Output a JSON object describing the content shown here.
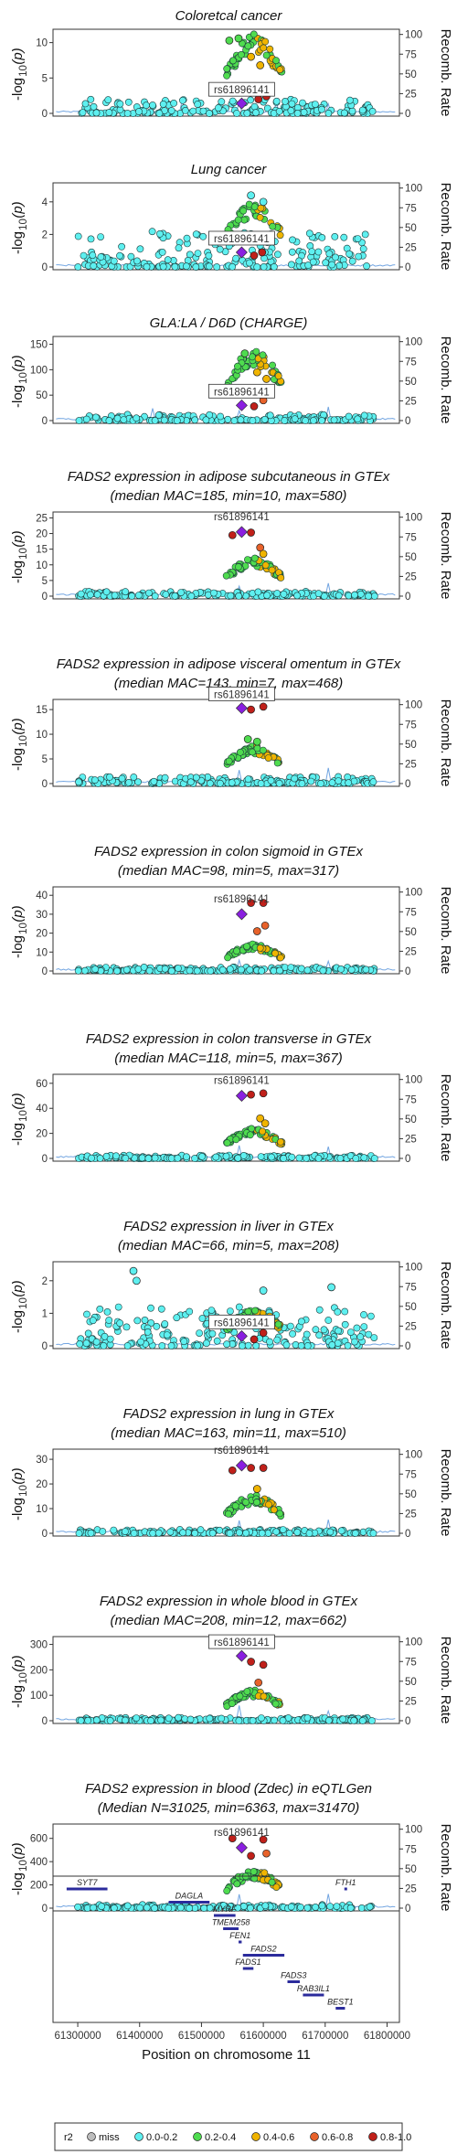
{
  "chart_data": [
    {
      "type": "scatter",
      "title": "Coloretcal cancer",
      "title2": "",
      "yticks": [
        0,
        5,
        10
      ],
      "ymax": 11.5,
      "y2ticks": [
        0,
        25,
        50,
        75,
        100
      ],
      "ylabel": "-log10(p)",
      "y2label": "Recomb. Rate",
      "lead_snp": "rs61896141",
      "lead_logp": 1.4,
      "lead_label_box": true,
      "peak": {
        "h": 10.2,
        "n": 55
      },
      "background": {
        "h": 2.0,
        "n": 170
      },
      "recomb_spikes": [
        61470000,
        61560000,
        61620000,
        61705000
      ],
      "notable_points": [
        {
          "x": 61545000,
          "y": 10.3,
          "r2": "0.2-0.4"
        },
        {
          "x": 61560000,
          "y": 10.6,
          "r2": "0.2-0.4"
        },
        {
          "x": 61580000,
          "y": 8.0,
          "r2": "0.4-0.6"
        },
        {
          "x": 61595000,
          "y": 6.8,
          "r2": "0.4-0.6"
        },
        {
          "x": 61592000,
          "y": 2.0,
          "r2": "0.8-1.0"
        },
        {
          "x": 61605000,
          "y": 2.4,
          "r2": "0.8-1.0"
        }
      ]
    },
    {
      "type": "scatter",
      "title": "Lung cancer",
      "title2": "",
      "yticks": [
        0,
        2,
        4
      ],
      "ymax": 5,
      "y2ticks": [
        0,
        25,
        50,
        75,
        100
      ],
      "ylabel": "-log10(p)",
      "y2label": "Recomb. Rate",
      "lead_snp": "rs61896141",
      "lead_logp": 0.9,
      "lead_label_box": true,
      "peak": {
        "h": 3.6,
        "n": 40
      },
      "background": {
        "h": 2.2,
        "n": 190
      },
      "recomb_spikes": [
        61560000,
        61705000
      ],
      "notable_points": [
        {
          "x": 61580000,
          "y": 4.4,
          "r2": "0.0-0.2"
        },
        {
          "x": 61600000,
          "y": 4.0,
          "r2": "0.0-0.2"
        },
        {
          "x": 61585000,
          "y": 0.7,
          "r2": "0.8-1.0"
        },
        {
          "x": 61598000,
          "y": 0.9,
          "r2": "0.8-1.0"
        }
      ]
    },
    {
      "type": "scatter",
      "title": "GLA:LA / D6D (CHARGE)",
      "title2": "",
      "yticks": [
        0,
        50,
        100,
        150
      ],
      "ymax": 160,
      "y2ticks": [
        0,
        25,
        50,
        75,
        100
      ],
      "ylabel": "-log10(p)",
      "y2label": "Recomb. Rate",
      "lead_snp": "rs61896141",
      "lead_logp": 30,
      "lead_label_box": true,
      "peak": {
        "h": 128,
        "n": 55
      },
      "background": {
        "h": 12,
        "n": 160
      },
      "recomb_spikes": [
        61420000,
        61560000,
        61705000
      ],
      "notable_points": [
        {
          "x": 61570000,
          "y": 132,
          "r2": "0.2-0.4"
        },
        {
          "x": 61590000,
          "y": 95,
          "r2": "0.4-0.6"
        },
        {
          "x": 61605000,
          "y": 82,
          "r2": "0.4-0.6"
        },
        {
          "x": 61585000,
          "y": 28,
          "r2": "0.8-1.0"
        },
        {
          "x": 61600000,
          "y": 40,
          "r2": "0.6-0.8"
        }
      ]
    },
    {
      "type": "scatter",
      "title": "FADS2 expression in adipose subcutaneous in GTEx",
      "title2": "(median MAC=185, min=10, max=580)",
      "yticks": [
        0,
        5,
        10,
        15,
        20,
        25
      ],
      "ymax": 26,
      "y2ticks": [
        0,
        25,
        50,
        75,
        100
      ],
      "ylabel": "-log10(p)",
      "y2label": "Recomb. Rate",
      "lead_snp": "rs61896141",
      "lead_logp": 20.5,
      "lead_label_box": false,
      "peak": {
        "h": 11,
        "n": 55
      },
      "background": {
        "h": 1.5,
        "n": 170
      },
      "recomb_spikes": [
        61560000,
        61705000
      ],
      "notable_points": [
        {
          "x": 61550000,
          "y": 19.5,
          "r2": "0.8-1.0"
        },
        {
          "x": 61580000,
          "y": 20.3,
          "r2": "0.8-1.0"
        },
        {
          "x": 61595000,
          "y": 15.5,
          "r2": "0.6-0.8"
        },
        {
          "x": 61600000,
          "y": 13.5,
          "r2": "0.4-0.6"
        }
      ]
    },
    {
      "type": "scatter",
      "title": "FADS2 expression in adipose visceral omentum in GTEx",
      "title2": "(median MAC=143, min=7, max=468)",
      "yticks": [
        0,
        5,
        10,
        15
      ],
      "ymax": 16.5,
      "y2ticks": [
        0,
        25,
        50,
        75,
        100
      ],
      "ylabel": "-log10(p)",
      "y2label": "Recomb. Rate",
      "lead_snp": "rs61896141",
      "lead_logp": 15.3,
      "lead_label_box": true,
      "peak": {
        "h": 7,
        "n": 50
      },
      "background": {
        "h": 1.4,
        "n": 170
      },
      "recomb_spikes": [
        61560000,
        61705000
      ],
      "notable_points": [
        {
          "x": 61580000,
          "y": 15.0,
          "r2": "0.8-1.0"
        },
        {
          "x": 61600000,
          "y": 15.6,
          "r2": "0.8-1.0"
        },
        {
          "x": 61590000,
          "y": 8.5,
          "r2": "0.2-0.4"
        },
        {
          "x": 61575000,
          "y": 9.0,
          "r2": "0.2-0.4"
        }
      ]
    },
    {
      "type": "scatter",
      "title": "FADS2 expression in colon sigmoid in GTEx",
      "title2": "(median MAC=98, min=5, max=317)",
      "yticks": [
        0,
        10,
        20,
        30,
        40
      ],
      "ymax": 43,
      "y2ticks": [
        0,
        25,
        50,
        75,
        100
      ],
      "ylabel": "-log10(p)",
      "y2label": "Recomb. Rate",
      "lead_snp": "rs61896141",
      "lead_logp": 30,
      "lead_label_box": false,
      "peak": {
        "h": 13,
        "n": 50
      },
      "background": {
        "h": 2,
        "n": 170
      },
      "recomb_spikes": [
        61560000,
        61705000
      ],
      "notable_points": [
        {
          "x": 61580000,
          "y": 36,
          "r2": "0.8-1.0"
        },
        {
          "x": 61600000,
          "y": 36,
          "r2": "0.8-1.0"
        },
        {
          "x": 61590000,
          "y": 21,
          "r2": "0.6-0.8"
        },
        {
          "x": 61603000,
          "y": 24,
          "r2": "0.6-0.8"
        }
      ]
    },
    {
      "type": "scatter",
      "title": "FADS2 expression in colon transverse in GTEx",
      "title2": "(median MAC=118, min=5, max=367)",
      "yticks": [
        0,
        20,
        40,
        60
      ],
      "ymax": 65,
      "y2ticks": [
        0,
        25,
        50,
        75,
        100
      ],
      "ylabel": "-log10(p)",
      "y2label": "Recomb. Rate",
      "lead_snp": "rs61896141",
      "lead_logp": 50,
      "lead_label_box": false,
      "peak": {
        "h": 22,
        "n": 50
      },
      "background": {
        "h": 2.5,
        "n": 170
      },
      "recomb_spikes": [
        61560000,
        61705000
      ],
      "notable_points": [
        {
          "x": 61580000,
          "y": 51,
          "r2": "0.8-1.0"
        },
        {
          "x": 61600000,
          "y": 52,
          "r2": "0.8-1.0"
        },
        {
          "x": 61595000,
          "y": 32,
          "r2": "0.4-0.6"
        },
        {
          "x": 61603000,
          "y": 28,
          "r2": "0.4-0.6"
        }
      ]
    },
    {
      "type": "scatter",
      "title": "FADS2 expression in liver in GTEx",
      "title2": "(median MAC=66, min=5, max=208)",
      "yticks": [
        0,
        1,
        2
      ],
      "ymax": 2.5,
      "y2ticks": [
        0,
        25,
        50,
        75,
        100
      ],
      "ylabel": "-log10(p)",
      "y2label": "Recomb. Rate",
      "lead_snp": "rs61896141",
      "lead_logp": 0.3,
      "lead_label_box": true,
      "peak": {
        "h": 1.0,
        "n": 50
      },
      "background": {
        "h": 1.2,
        "n": 200
      },
      "recomb_spikes": [
        61560000,
        61705000
      ],
      "notable_points": [
        {
          "x": 61390000,
          "y": 2.3,
          "r2": "0.0-0.2"
        },
        {
          "x": 61395000,
          "y": 2.0,
          "r2": "0.0-0.2"
        },
        {
          "x": 61600000,
          "y": 1.7,
          "r2": "0.0-0.2"
        },
        {
          "x": 61710000,
          "y": 1.8,
          "r2": "0.0-0.2"
        },
        {
          "x": 61585000,
          "y": 0.2,
          "r2": "0.8-1.0"
        },
        {
          "x": 61600000,
          "y": 0.4,
          "r2": "0.8-1.0"
        }
      ]
    },
    {
      "type": "scatter",
      "title": "FADS2 expression in lung in GTEx",
      "title2": "(median MAC=163, min=11, max=510)",
      "yticks": [
        0,
        10,
        20,
        30
      ],
      "ymax": 33,
      "y2ticks": [
        0,
        25,
        50,
        75,
        100
      ],
      "ylabel": "-log10(p)",
      "y2label": "Recomb. Rate",
      "lead_snp": "rs61896141",
      "lead_logp": 27.5,
      "lead_label_box": false,
      "peak": {
        "h": 14,
        "n": 55
      },
      "background": {
        "h": 1.5,
        "n": 170
      },
      "recomb_spikes": [
        61560000,
        61705000
      ],
      "notable_points": [
        {
          "x": 61550000,
          "y": 25.5,
          "r2": "0.8-1.0"
        },
        {
          "x": 61580000,
          "y": 26.5,
          "r2": "0.8-1.0"
        },
        {
          "x": 61600000,
          "y": 26.5,
          "r2": "0.8-1.0"
        },
        {
          "x": 61590000,
          "y": 18,
          "r2": "0.4-0.6"
        }
      ]
    },
    {
      "type": "scatter",
      "title": "FADS2 expression in whole blood in GTEx",
      "title2": "(median MAC=208, min=12, max=662)",
      "yticks": [
        0,
        100,
        200,
        300
      ],
      "ymax": 320,
      "y2ticks": [
        0,
        25,
        50,
        75,
        100
      ],
      "ylabel": "-log10(p)",
      "y2label": "Recomb. Rate",
      "lead_snp": "rs61896141",
      "lead_logp": 255,
      "lead_label_box": true,
      "peak": {
        "h": 110,
        "n": 55
      },
      "background": {
        "h": 12,
        "n": 170
      },
      "recomb_spikes": [
        61560000,
        61705000
      ],
      "notable_points": [
        {
          "x": 61580000,
          "y": 232,
          "r2": "0.8-1.0"
        },
        {
          "x": 61600000,
          "y": 220,
          "r2": "0.8-1.0"
        },
        {
          "x": 61592000,
          "y": 150,
          "r2": "0.6-0.8"
        }
      ]
    },
    {
      "type": "scatter",
      "title": "FADS2 expression in blood (Zdec) in eQTLGen",
      "title2": "(Median N=31025, min=6363, max=31470)",
      "yticks": [
        0,
        200,
        400,
        600
      ],
      "ymax": 700,
      "y2ticks": [
        0,
        25,
        50,
        75,
        100
      ],
      "ylabel": "-log10(p)",
      "y2label": "Recomb. Rate",
      "lead_snp": "rs61896141",
      "lead_logp": 520,
      "lead_label_box": false,
      "peak": {
        "h": 300,
        "n": 55
      },
      "background": {
        "h": 30,
        "n": 170
      },
      "recomb_spikes": [
        61560000,
        61705000
      ],
      "notable_points": [
        {
          "x": 61550000,
          "y": 600,
          "r2": "0.8-1.0"
        },
        {
          "x": 61580000,
          "y": 450,
          "r2": "0.8-1.0"
        },
        {
          "x": 61600000,
          "y": 590,
          "r2": "0.8-1.0"
        },
        {
          "x": 61605000,
          "y": 470,
          "r2": "0.6-0.8"
        }
      ]
    }
  ],
  "genes": {
    "xlabel": "Position on chromosome 11",
    "xticks": [
      61300000,
      61400000,
      61500000,
      61600000,
      61700000,
      61800000
    ],
    "xtick_labels": [
      "61300000",
      "61400000",
      "61500000",
      "61600000",
      "61700000",
      "61800000"
    ],
    "xlim": [
      61260000,
      61820000
    ],
    "tracks": [
      {
        "name": "SYT7",
        "start": 61282000,
        "end": 61348000,
        "row": 0
      },
      {
        "name": "FTH1",
        "start": 61731000,
        "end": 61735000,
        "row": 0
      },
      {
        "name": "DAGLA",
        "start": 61447000,
        "end": 61513000,
        "row": 1
      },
      {
        "name": "MYRF",
        "start": 61520000,
        "end": 61555000,
        "row": 2
      },
      {
        "name": "TMEM258",
        "start": 61535000,
        "end": 61560000,
        "row": 3
      },
      {
        "name": "FEN1",
        "start": 61560000,
        "end": 61565000,
        "row": 4
      },
      {
        "name": "FADS2",
        "start": 61567000,
        "end": 61634000,
        "row": 5
      },
      {
        "name": "FADS1",
        "start": 61567000,
        "end": 61584000,
        "row": 6
      },
      {
        "name": "FADS3",
        "start": 61639000,
        "end": 61659000,
        "row": 7
      },
      {
        "name": "RAB3IL1",
        "start": 61664000,
        "end": 61698000,
        "row": 8
      },
      {
        "name": "BEST1",
        "start": 61717000,
        "end": 61732000,
        "row": 9
      }
    ]
  },
  "legend": {
    "title": "r2",
    "items": [
      {
        "label": "miss",
        "color": "#bdbdbd"
      },
      {
        "label": "0.0-0.2",
        "color": "#5ef0f0"
      },
      {
        "label": "0.2-0.4",
        "color": "#4fdc4f"
      },
      {
        "label": "0.4-0.6",
        "color": "#f0b400"
      },
      {
        "label": "0.6-0.8",
        "color": "#e8622a"
      },
      {
        "label": "0.8-1.0",
        "color": "#c0201a"
      }
    ],
    "lead_color": "#8a1fe0",
    "recomb_color": "#4f8fd9"
  }
}
